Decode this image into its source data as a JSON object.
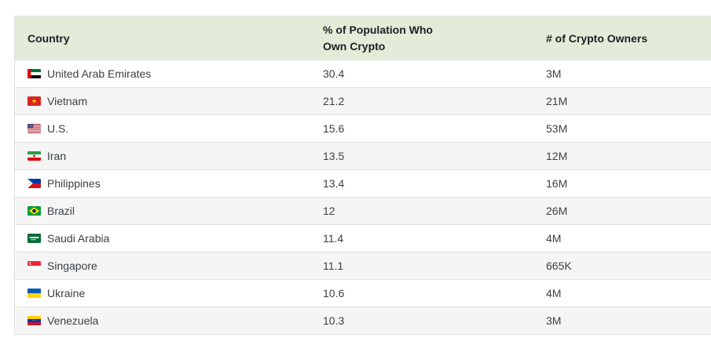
{
  "table": {
    "header_bg": "#e3ecd9",
    "row_alt_bg": "#f5f5f5",
    "border_color": "#e0e0e0",
    "header": {
      "country": "Country",
      "pct": "% of Population Who Own Crypto",
      "owners": "# of Crypto Owners"
    },
    "rows": [
      {
        "flag": "ae",
        "flag_icon": "uae-flag-icon",
        "country": "United Arab Emirates",
        "pct": "30.4",
        "owners": "3M"
      },
      {
        "flag": "vn",
        "flag_icon": "vietnam-flag-icon",
        "country": "Vietnam",
        "pct": "21.2",
        "owners": "21M"
      },
      {
        "flag": "us",
        "flag_icon": "us-flag-icon",
        "country": "U.S.",
        "pct": "15.6",
        "owners": "53M"
      },
      {
        "flag": "ir",
        "flag_icon": "iran-flag-icon",
        "country": "Iran",
        "pct": "13.5",
        "owners": "12M"
      },
      {
        "flag": "ph",
        "flag_icon": "philippines-flag-icon",
        "country": "Philippines",
        "pct": "13.4",
        "owners": "16M"
      },
      {
        "flag": "br",
        "flag_icon": "brazil-flag-icon",
        "country": "Brazil",
        "pct": "12",
        "owners": "26M"
      },
      {
        "flag": "sa",
        "flag_icon": "saudi-arabia-flag-icon",
        "country": "Saudi Arabia",
        "pct": "11.4",
        "owners": "4M"
      },
      {
        "flag": "sg",
        "flag_icon": "singapore-flag-icon",
        "country": "Singapore",
        "pct": "11.1",
        "owners": "665K"
      },
      {
        "flag": "ua",
        "flag_icon": "ukraine-flag-icon",
        "country": "Ukraine",
        "pct": "10.6",
        "owners": "4M"
      },
      {
        "flag": "ve",
        "flag_icon": "venezuela-flag-icon",
        "country": "Venezuela",
        "pct": "10.3",
        "owners": "3M"
      }
    ]
  },
  "chart_data": {
    "type": "table",
    "columns": [
      "Country",
      "% of Population Who Own Crypto",
      "# of Crypto Owners"
    ],
    "rows": [
      [
        "United Arab Emirates",
        30.4,
        "3M"
      ],
      [
        "Vietnam",
        21.2,
        "21M"
      ],
      [
        "U.S.",
        15.6,
        "53M"
      ],
      [
        "Iran",
        13.5,
        "12M"
      ],
      [
        "Philippines",
        13.4,
        "16M"
      ],
      [
        "Brazil",
        12,
        "26M"
      ],
      [
        "Saudi Arabia",
        11.4,
        "4M"
      ],
      [
        "Singapore",
        11.1,
        "665K"
      ],
      [
        "Ukraine",
        10.6,
        "4M"
      ],
      [
        "Venezuela",
        10.3,
        "3M"
      ]
    ]
  }
}
